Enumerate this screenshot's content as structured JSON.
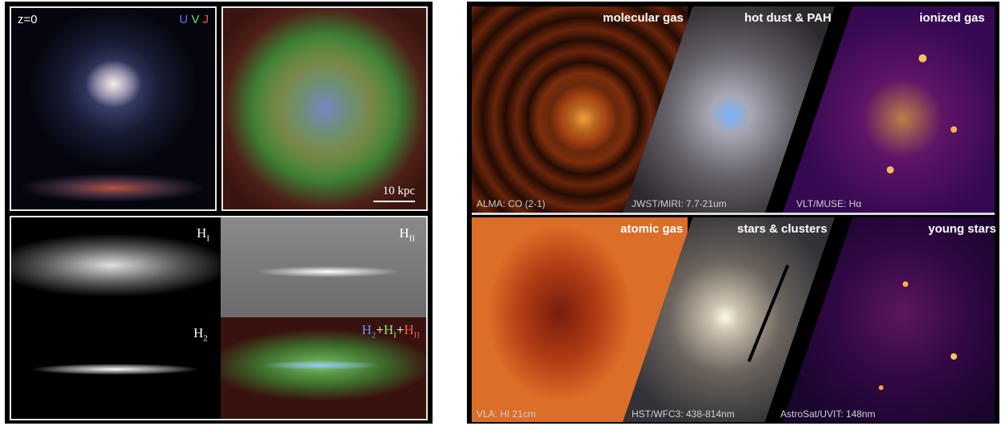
{
  "left_panel": {
    "top_left": {
      "redshift": "z=0",
      "bands": {
        "u": "U",
        "v": "V",
        "j": "J"
      }
    },
    "top_right": {
      "scale": "10 kpc"
    },
    "bottom": {
      "hi": {
        "base": "H",
        "sub": "I"
      },
      "hii": {
        "base": "H",
        "sub": "II"
      },
      "h2": {
        "base": "H",
        "sub": "2"
      },
      "sum": {
        "h2_base": "H",
        "h2_sub": "2",
        "plus1": "+",
        "hi_base": "H",
        "hi_sub": "I",
        "plus2": "+",
        "hii_base": "H",
        "hii_sub": "II"
      }
    }
  },
  "right_panel": {
    "top": [
      {
        "title": "molecular gas",
        "caption": "ALMA: CO (2-1)"
      },
      {
        "title": "hot dust & PAH",
        "caption": "JWST/MIRI: 7.7-21um"
      },
      {
        "title": "ionized gas",
        "caption": "VLT/MUSE: Hα"
      }
    ],
    "bottom": [
      {
        "title": "atomic gas",
        "caption": "VLA: HI 21cm"
      },
      {
        "title": "stars & clusters",
        "caption": "HST/WFC3: 438-814nm"
      },
      {
        "title": "young stars",
        "caption": "AstroSat/UVIT: 148nm"
      }
    ]
  },
  "colors": {
    "u": "#5a78ff",
    "v": "#6fe06f",
    "j": "#ff5a4a",
    "h2": "#6a8cff",
    "hi": "#8ee27a",
    "hii": "#ff5a4a"
  }
}
